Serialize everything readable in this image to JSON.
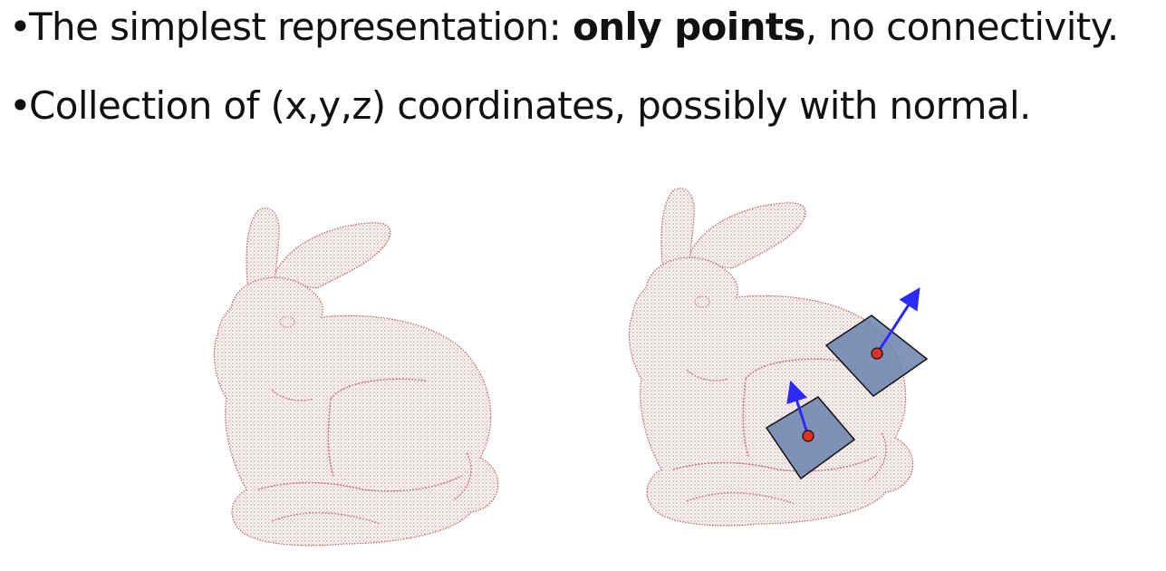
{
  "bullets": {
    "first": {
      "marker": "•",
      "before": "The simplest representation: ",
      "bold": "only points",
      "after": ", no connectivity."
    },
    "second": {
      "marker": "•",
      "text": "Collection of (x,y,z) coordinates, possibly with normal."
    }
  },
  "figures": {
    "left": "bunny-point-cloud",
    "right": "bunny-point-cloud-with-normals"
  },
  "colors": {
    "points": "#b04a4a",
    "tangent_patch": "#6a82ad",
    "normal_arrow": "#2a2aff",
    "sample_point": "#e03020"
  }
}
